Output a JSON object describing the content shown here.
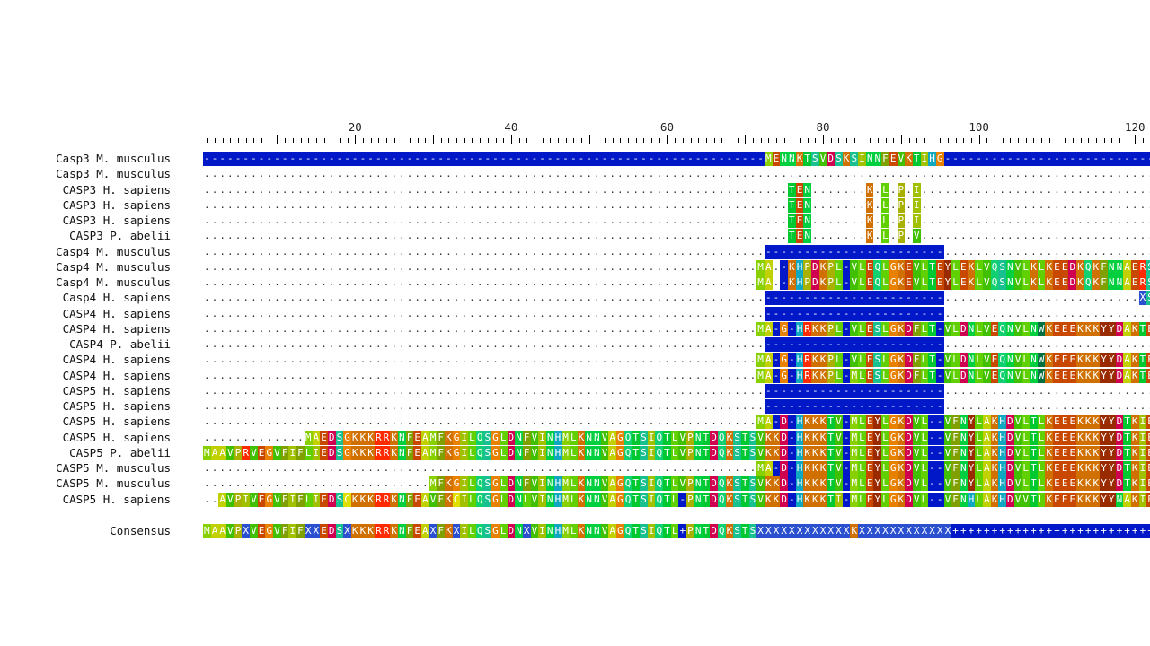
{
  "ruler": {
    "labels": [
      "20",
      "40",
      "60",
      "80",
      "100",
      "120"
    ],
    "label_positions": [
      20,
      40,
      60,
      80,
      100,
      120
    ]
  },
  "colors": {
    "A": "#c0d000",
    "R": "#ff2a00",
    "N": "#00d040",
    "D": "#d00050",
    "C": "#e0e000",
    "Q": "#10d070",
    "E": "#c84800",
    "G": "#e88000",
    "H": "#10a8c0",
    "I": "#a0c000",
    "L": "#60d000",
    "K": "#d07000",
    "M": "#88d000",
    "F": "#80a000",
    "P": "#a8b000",
    "S": "#18c090",
    "T": "#00c830",
    "W": "#007040",
    "Y": "#9a2a00",
    "V": "#40c000",
    "X": "#2a50d0",
    "-": "#0018c8",
    "+": "#0018c8"
  },
  "rows": [
    {
      "name": "Casp3 M. musculus",
      "seq": "------------------------------------------------------------------------MENNKTSVDSKSINNFEVKTIHG-----------------------------------"
    },
    {
      "name": "Casp3 M. musculus",
      "seq": "........................................................................................................................................"
    },
    {
      "name": "CASP3 H. sapiens",
      "seq": "...........................................................................TEN.......K.L.P.I..................................................."
    },
    {
      "name": "CASP3 H. sapiens",
      "seq": "...........................................................................TEN.......K.L.P.I..................................................."
    },
    {
      "name": "CASP3 H. sapiens",
      "seq": "...........................................................................TEN.......K.L.P.I..................................................."
    },
    {
      "name": "CASP3 P. abelii",
      "seq": "...........................................................................TEN.......K.L.P.V..................................................."
    },
    {
      "name": "Casp4 M. musculus",
      "seq": "........................................................................-----------------------................................................."
    },
    {
      "name": "Casp4 M. musculus",
      "seq": ".......................................................................MA.-KHPDKPL-VLEQLGKEVLTEYLEKLVQSNVLKLKEEDKQKFNNAERS"
    },
    {
      "name": "Casp4 M. musculus",
      "seq": ".......................................................................MA.-KHPDKPL-VLEQLGKEVLTEYLEKLVQSNVLKLKEEDKQKFNNAERS"
    },
    {
      "name": "Casp4 H. sapiens",
      "seq": "........................................................................-----------------------.........................XS"
    },
    {
      "name": "CASP4 H. sapiens",
      "seq": "........................................................................-----------------------................................................."
    },
    {
      "name": "CASP4 H. sapiens",
      "seq": ".......................................................................MA-G-HRKKPL-VLESLGKDFLT-VLDNLVEQNVLNWKEEEKKKYYDAKTE"
    },
    {
      "name": "CASP4 P. abelii",
      "seq": "........................................................................-----------------------................................................."
    },
    {
      "name": "CASP4 H. sapiens",
      "seq": ".......................................................................MA-G-HRKKPL-VLESLGKDFLT-VLDNLVEQNVLNWKEEEKKKYYDAKTE"
    },
    {
      "name": "CASP4 H. sapiens",
      "seq": ".......................................................................MA-G-HRKKPL-MLESLGKDFLT-VLDNLVEQNVLNWKEEEKKKYYDAKTE"
    },
    {
      "name": "CASP5 H. sapiens",
      "seq": "........................................................................-----------------------................................................."
    },
    {
      "name": "CASP5 H. sapiens",
      "seq": "........................................................................-----------------------................................................."
    },
    {
      "name": "CASP5 H. sapiens",
      "seq": ".......................................................................MA-D-HKKKTV-MLEYLGKDVL--VFNYLAKHDVLTLKEEEKKKYYDTKIE"
    },
    {
      "name": "CASP5 H. sapiens",
      "seq": ".............MAEDSGKKKRRKNFEAMFKGILQSGLDNFVINHMLKNNVAGQTSIQTLVPNTDQKSTSVKKD-HKKKTV-MLEYLGKDVL--VFNYLAKHDVLTLKEEEKKKYYDTKIE"
    },
    {
      "name": "CASP5 P. abelii",
      "seq": "MAAVPRVEGVFIFLIEDSGKKKRRKNFEAMFKGILQSGLDNFVINHMLKNNVAGQTSIQTLVPNTDQKSTSVKKD-HKKKTV-MLEYLGKDVL--VFNYLAKHDVLTLKEEEKKKYYDTKIE"
    },
    {
      "name": "CASP5 M. musculus",
      "seq": ".......................................................................MA-D-HKKKTV-MLEYLGKDVL--VFNYLAKHDVLTLKEEEKKKYYDTKIE"
    },
    {
      "name": "CASP5 M. musculus",
      "seq": ".............................MFKGILQSGLDNFVINHMLKNNVAGQTSIQTLVPNTDQKSTSVKKD-HKKKTV-MLEYLGKDVL--VFNYLAKHDVLTLKEEEKKKYYDTKIE"
    },
    {
      "name": "CASP5 H. sapiens",
      "seq": "..AVPIVEGVFIFLIEDSCKKKRRKNFEAVFKCILQSGLDNLVINHMLKNNVAGQTSIQTL-PNTDQKSTSVKKD-HKKKTI-MLEYLGKDVL--VFNHLAKHDVVTLKEEEKKKYYNAKIE"
    }
  ],
  "consensus": {
    "name": "Consensus",
    "seq": "MAAVPXVEGVFIFXXEDSXKKKRRKNFEAXFKXILQSGLDNXVINHMLKNNVAGQTSIQTL+PNTDQKSTSXXXXXXXXXXXXKXXXXXXXXXXXX++++++++++++++++++++++++++++"
  }
}
